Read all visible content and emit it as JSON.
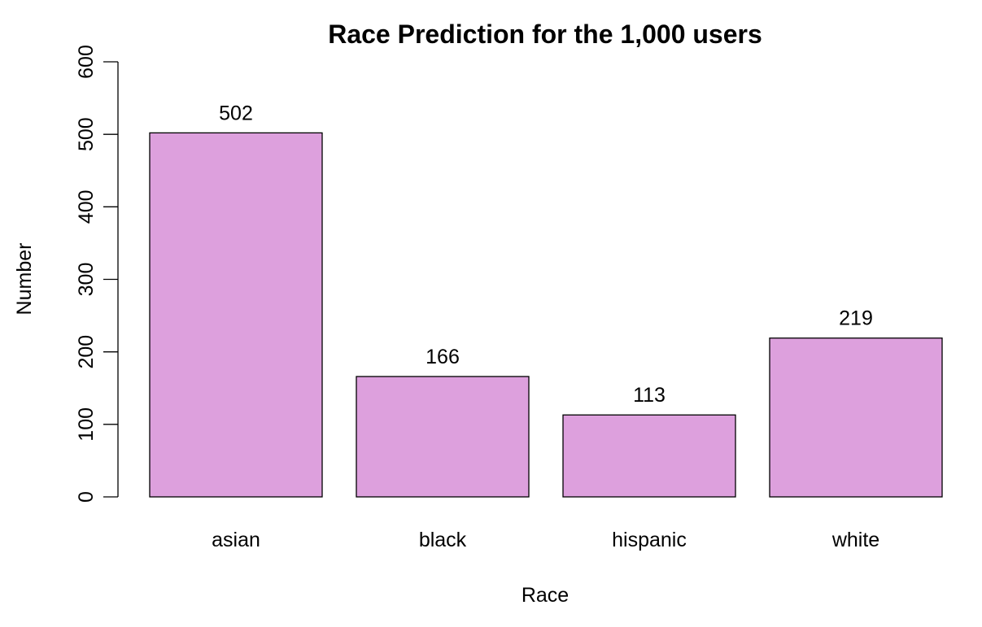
{
  "chart_data": {
    "type": "bar",
    "title": "Race Prediction for the 1,000 users",
    "xlabel": "Race",
    "ylabel": "Number",
    "categories": [
      "asian",
      "black",
      "hispanic",
      "white"
    ],
    "values": [
      502,
      166,
      113,
      219
    ],
    "data_labels": [
      "502",
      "166",
      "113",
      "219"
    ],
    "ylim": [
      0,
      600
    ],
    "yticks": [
      0,
      100,
      200,
      300,
      400,
      500,
      600
    ],
    "ytick_labels": [
      "0",
      "100",
      "200",
      "300",
      "400",
      "500",
      "600"
    ],
    "grid": false,
    "legend": "none",
    "bar_color": "#DDA0DD",
    "border_color": "#000000"
  }
}
